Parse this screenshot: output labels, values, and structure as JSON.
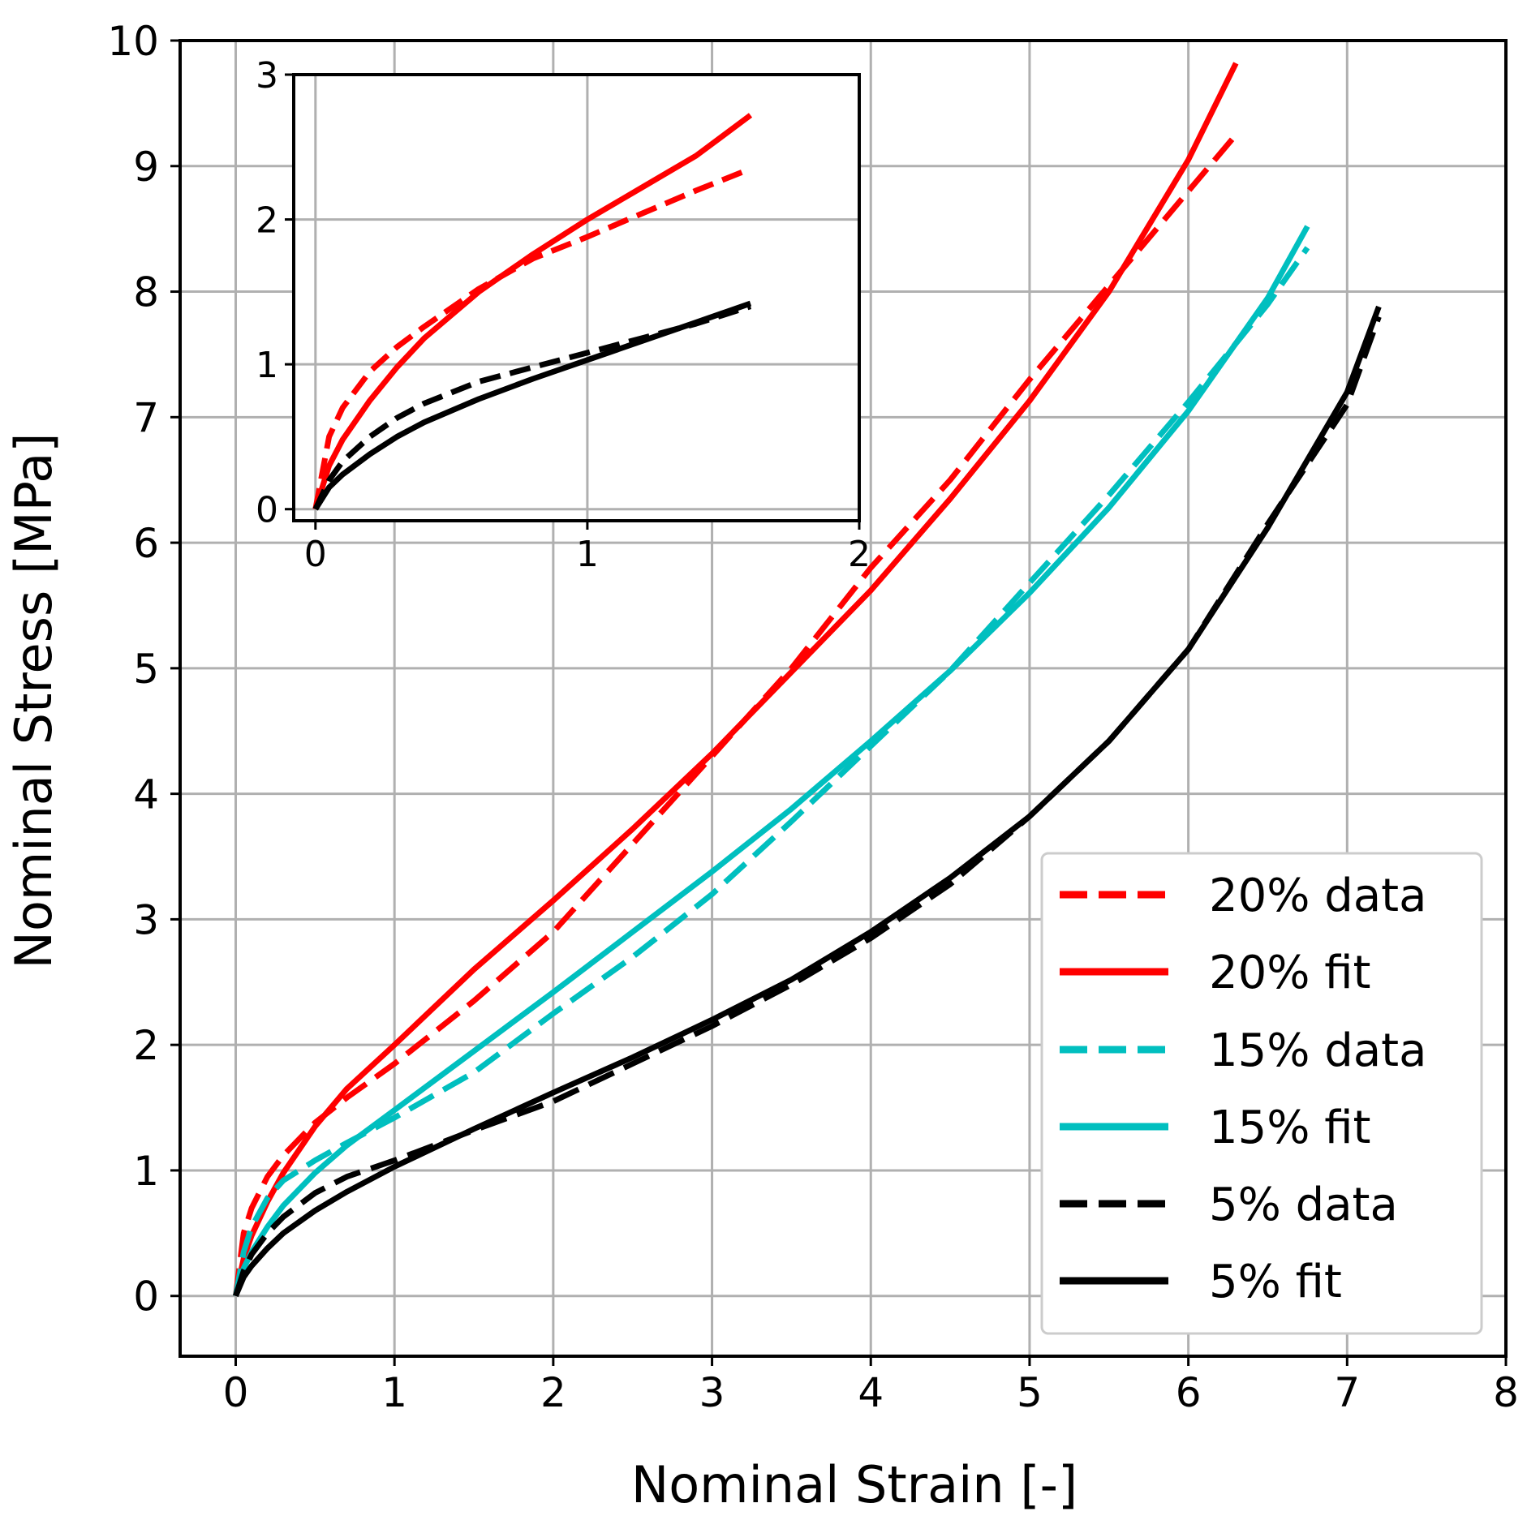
{
  "chart_data": [
    {
      "type": "line",
      "role": "main",
      "title": "",
      "xlabel": "Nominal Strain [-]",
      "ylabel": "Nominal Stress [MPa]",
      "xlim": [
        -0.35,
        8
      ],
      "ylim": [
        -0.48,
        10
      ],
      "xticks": [
        0,
        1,
        2,
        3,
        4,
        5,
        6,
        7,
        8
      ],
      "yticks": [
        0,
        1,
        2,
        3,
        4,
        5,
        6,
        7,
        8,
        9,
        10
      ],
      "xtick_labels": [
        "0",
        "1",
        "2",
        "3",
        "4",
        "5",
        "6",
        "7",
        "8"
      ],
      "ytick_labels": [
        "0",
        "1",
        "2",
        "3",
        "4",
        "5",
        "6",
        "7",
        "8",
        "9",
        "10"
      ],
      "grid": true,
      "legend_position": "bottom-right",
      "series": [
        {
          "name": "20% data",
          "color": "#ff0000",
          "dash": "dashed",
          "x": [
            0,
            0.05,
            0.1,
            0.2,
            0.3,
            0.5,
            0.7,
            1.0,
            1.5,
            2.0,
            2.5,
            3.0,
            3.5,
            4.0,
            4.5,
            5.0,
            5.5,
            6.0,
            6.3
          ],
          "y": [
            0,
            0.5,
            0.7,
            0.95,
            1.12,
            1.38,
            1.58,
            1.85,
            2.35,
            2.9,
            3.6,
            4.3,
            5.0,
            5.8,
            6.5,
            7.3,
            8.05,
            8.8,
            9.25
          ]
        },
        {
          "name": "20% fit",
          "color": "#ff0000",
          "dash": "solid",
          "x": [
            0,
            0.05,
            0.1,
            0.2,
            0.3,
            0.5,
            0.7,
            1.0,
            1.5,
            2.0,
            2.5,
            3.0,
            3.5,
            4.0,
            4.5,
            5.0,
            5.5,
            6.0,
            6.3
          ],
          "y": [
            0,
            0.3,
            0.48,
            0.75,
            0.98,
            1.35,
            1.65,
            2.0,
            2.6,
            3.15,
            3.72,
            4.32,
            4.97,
            5.62,
            6.35,
            7.13,
            8.0,
            9.05,
            9.82
          ]
        },
        {
          "name": "15% data",
          "color": "#00bfbf",
          "dash": "dashed",
          "x": [
            0,
            0.05,
            0.1,
            0.2,
            0.3,
            0.5,
            0.7,
            1.0,
            1.5,
            2.0,
            2.5,
            3.0,
            3.5,
            4.0,
            4.5,
            5.0,
            5.5,
            6.0,
            6.5,
            6.75
          ],
          "y": [
            0,
            0.35,
            0.55,
            0.78,
            0.92,
            1.08,
            1.22,
            1.42,
            1.78,
            2.25,
            2.7,
            3.2,
            3.78,
            4.38,
            4.98,
            5.68,
            6.38,
            7.12,
            7.9,
            8.35
          ]
        },
        {
          "name": "15% fit",
          "color": "#00bfbf",
          "dash": "solid",
          "x": [
            0,
            0.05,
            0.1,
            0.2,
            0.3,
            0.5,
            0.7,
            1.0,
            1.5,
            2.0,
            2.5,
            3.0,
            3.5,
            4.0,
            4.5,
            5.0,
            5.5,
            6.0,
            6.5,
            6.75
          ],
          "y": [
            0,
            0.22,
            0.35,
            0.55,
            0.72,
            0.98,
            1.2,
            1.48,
            1.95,
            2.42,
            2.9,
            3.38,
            3.88,
            4.42,
            4.98,
            5.6,
            6.28,
            7.05,
            7.95,
            8.52
          ]
        },
        {
          "name": "5% data",
          "color": "#000000",
          "dash": "dashed",
          "x": [
            0,
            0.05,
            0.1,
            0.2,
            0.3,
            0.5,
            0.7,
            1.0,
            1.5,
            2.0,
            2.5,
            3.0,
            3.5,
            4.0,
            4.5,
            5.0,
            5.5,
            6.0,
            6.5,
            7.0,
            7.2
          ],
          "y": [
            0,
            0.2,
            0.33,
            0.5,
            0.63,
            0.82,
            0.95,
            1.08,
            1.32,
            1.55,
            1.85,
            2.15,
            2.48,
            2.85,
            3.28,
            3.82,
            4.42,
            5.15,
            6.15,
            7.1,
            7.8
          ]
        },
        {
          "name": "5% fit",
          "color": "#000000",
          "dash": "solid",
          "x": [
            0,
            0.05,
            0.1,
            0.2,
            0.3,
            0.5,
            0.7,
            1.0,
            1.5,
            2.0,
            2.5,
            3.0,
            3.5,
            4.0,
            4.5,
            5.0,
            5.5,
            6.0,
            6.5,
            7.0,
            7.2
          ],
          "y": [
            0,
            0.15,
            0.24,
            0.38,
            0.5,
            0.68,
            0.83,
            1.03,
            1.33,
            1.62,
            1.9,
            2.2,
            2.52,
            2.9,
            3.33,
            3.82,
            4.42,
            5.15,
            6.12,
            7.2,
            7.88
          ]
        }
      ]
    },
    {
      "type": "line",
      "role": "inset",
      "title": "",
      "xlabel": "",
      "ylabel": "",
      "xlim": [
        -0.08,
        2
      ],
      "ylim": [
        -0.08,
        3
      ],
      "xticks": [
        0,
        1,
        2
      ],
      "yticks": [
        0,
        1,
        2,
        3
      ],
      "xtick_labels": [
        "0",
        "1",
        "2"
      ],
      "ytick_labels": [
        "0",
        "1",
        "2",
        "3"
      ],
      "grid": true,
      "series": [
        {
          "name": "20% data",
          "color": "#ff0000",
          "dash": "dashed",
          "x": [
            0,
            0.05,
            0.1,
            0.2,
            0.3,
            0.4,
            0.6,
            0.8,
            1.0,
            1.2,
            1.4,
            1.6
          ],
          "y": [
            0,
            0.5,
            0.7,
            0.95,
            1.12,
            1.26,
            1.52,
            1.73,
            1.88,
            2.04,
            2.2,
            2.35
          ]
        },
        {
          "name": "20% fit",
          "color": "#ff0000",
          "dash": "solid",
          "x": [
            0,
            0.05,
            0.1,
            0.2,
            0.3,
            0.4,
            0.6,
            0.8,
            1.0,
            1.2,
            1.4,
            1.6
          ],
          "y": [
            0,
            0.3,
            0.48,
            0.75,
            0.98,
            1.18,
            1.5,
            1.76,
            2.0,
            2.22,
            2.44,
            2.72
          ]
        },
        {
          "name": "5% data",
          "color": "#000000",
          "dash": "dashed",
          "x": [
            0,
            0.05,
            0.1,
            0.2,
            0.3,
            0.4,
            0.6,
            0.8,
            1.0,
            1.2,
            1.4,
            1.6
          ],
          "y": [
            0,
            0.2,
            0.33,
            0.5,
            0.63,
            0.73,
            0.88,
            0.98,
            1.08,
            1.18,
            1.28,
            1.4
          ]
        },
        {
          "name": "5% fit",
          "color": "#000000",
          "dash": "solid",
          "x": [
            0,
            0.05,
            0.1,
            0.2,
            0.3,
            0.4,
            0.6,
            0.8,
            1.0,
            1.2,
            1.4,
            1.6
          ],
          "y": [
            0,
            0.15,
            0.24,
            0.38,
            0.5,
            0.6,
            0.76,
            0.9,
            1.03,
            1.16,
            1.29,
            1.42
          ]
        }
      ]
    }
  ]
}
